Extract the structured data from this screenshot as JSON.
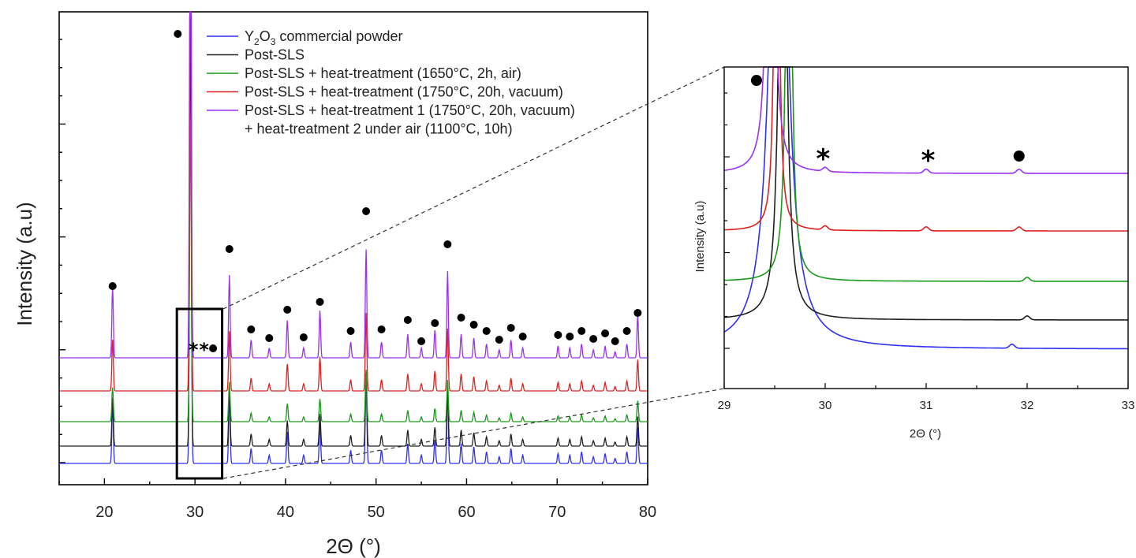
{
  "chart_data": [
    {
      "type": "line",
      "xlabel": "2Θ (°)",
      "ylabel": "Intensity (a.u)",
      "xlim": [
        15,
        80
      ],
      "x_ticks": [
        20,
        30,
        40,
        50,
        60,
        70,
        80
      ],
      "y_ticklabels_shown": false,
      "legend": {
        "placement": "top",
        "entries": [
          {
            "base": "Y",
            "sub1": "2",
            "mid": "O",
            "sub2": "3",
            "rest": " commercial powder",
            "color": "#3030f0"
          },
          {
            "text": "Post-SLS",
            "color": "#202020"
          },
          {
            "text": "Post-SLS + heat-treatment (1650°C, 2h, air)",
            "color": "#1a9a1a"
          },
          {
            "text": "Post-SLS + heat-treatment (1750°C, 20h, vacuum)",
            "color": "#e02020"
          },
          {
            "text": "Post-SLS + heat-treatment 1 (1750°C, 20h, vacuum)",
            "color": "#9a30f0"
          },
          {
            "text": "+ heat-treatment 2 under air (1100°C, 10h)",
            "color": null
          }
        ]
      },
      "series_order_bottom_to_top": [
        "Y2O3 commercial powder",
        "Post-SLS",
        "Post-SLS + heat-treatment (1650°C, 2h, air)",
        "Post-SLS + heat-treatment (1750°C, 20h, vacuum)",
        "Post-SLS + heat-treatment 1 + heat-treatment 2"
      ],
      "peaks_2theta": [
        20.9,
        29.5,
        33.8,
        36.2,
        38.2,
        40.2,
        42.0,
        43.8,
        47.2,
        48.9,
        50.6,
        53.5,
        55.0,
        56.5,
        57.9,
        59.4,
        60.8,
        62.2,
        63.6,
        64.9,
        66.2,
        70.1,
        71.4,
        72.7,
        74.0,
        75.3,
        76.4,
        77.7,
        78.9
      ],
      "peak_marker_circle": "●",
      "peak_marker_star": "*",
      "zoom_box_2theta": [
        28,
        33
      ]
    },
    {
      "type": "line",
      "xlabel": "2Θ (°)",
      "ylabel": "Intensity (a.u)",
      "xlim": [
        29,
        33
      ],
      "x_ticks": [
        29,
        30,
        31,
        32,
        33
      ],
      "annotations": [
        {
          "symbol": "●",
          "x": 29.32
        },
        {
          "symbol": "*",
          "x": 29.98
        },
        {
          "symbol": "*",
          "x": 31.02
        },
        {
          "symbol": "●",
          "x": 31.92
        }
      ],
      "small_peaks_2theta": {
        "Post-SLS + heat-treatment 1 + heat-treatment 2": [
          30.0,
          31.0,
          31.92
        ],
        "Post-SLS + heat-treatment (1750°C, 20h, vacuum)": [
          30.0,
          31.0,
          31.92
        ],
        "Post-SLS + heat-treatment (1650°C, 2h, air)": [
          32.0
        ],
        "Post-SLS": [
          32.0
        ],
        "Y2O3 commercial powder": [
          31.85
        ]
      }
    }
  ]
}
